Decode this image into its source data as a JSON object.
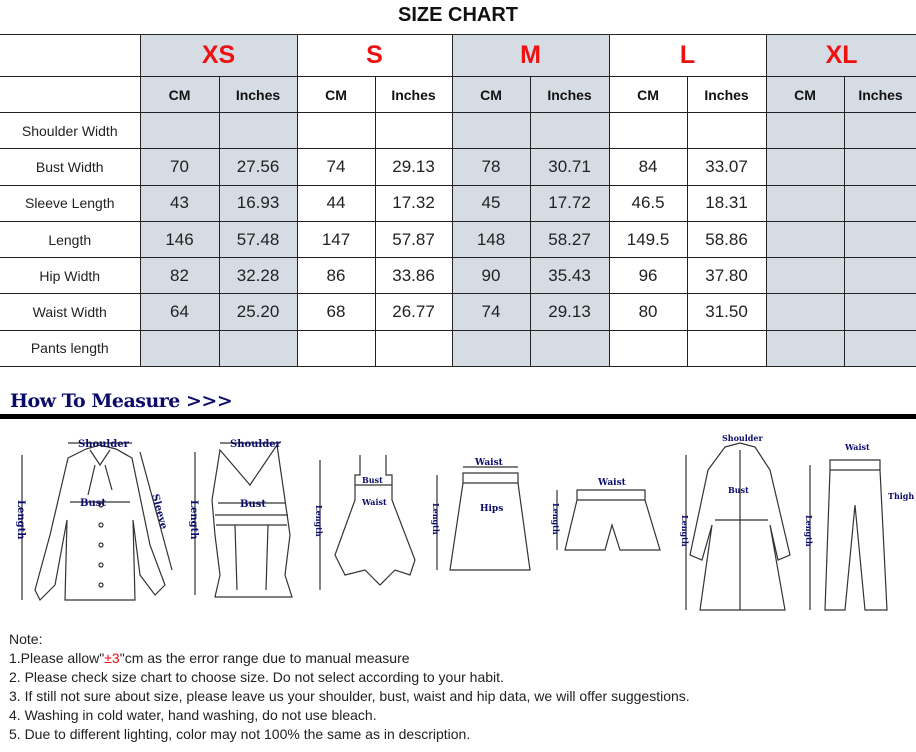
{
  "title": "SIZE CHART",
  "sizes": [
    "XS",
    "S",
    "M",
    "L",
    "XL"
  ],
  "units": {
    "cm": "CM",
    "inches": "Inches"
  },
  "rows": [
    {
      "label": "Shoulder Width",
      "values": [
        "",
        "",
        "",
        "",
        "",
        "",
        "",
        "",
        "",
        ""
      ]
    },
    {
      "label": "Bust Width",
      "values": [
        "70",
        "27.56",
        "74",
        "29.13",
        "78",
        "30.71",
        "84",
        "33.07",
        "",
        ""
      ]
    },
    {
      "label": "Sleeve Length",
      "values": [
        "43",
        "16.93",
        "44",
        "17.32",
        "45",
        "17.72",
        "46.5",
        "18.31",
        "",
        ""
      ]
    },
    {
      "label": "Length",
      "values": [
        "146",
        "57.48",
        "147",
        "57.87",
        "148",
        "58.27",
        "149.5",
        "58.86",
        "",
        ""
      ]
    },
    {
      "label": "Hip Width",
      "values": [
        "82",
        "32.28",
        "86",
        "33.86",
        "90",
        "35.43",
        "96",
        "37.80",
        "",
        ""
      ]
    },
    {
      "label": "Waist Width",
      "values": [
        "64",
        "25.20",
        "68",
        "26.77",
        "74",
        "29.13",
        "80",
        "31.50",
        "",
        ""
      ]
    },
    {
      "label": "Pants length",
      "values": [
        "",
        "",
        "",
        "",
        "",
        "",
        "",
        "",
        "",
        ""
      ]
    }
  ],
  "colors": {
    "size_label": "#ee1111",
    "shaded_column": "#d6dce4",
    "measure_heading": "#0b0b6b"
  },
  "how_to_measure": {
    "heading": "How To Measure >>>",
    "labels": {
      "shoulder": "Shoulder",
      "bust": "Bust",
      "sleeve": "Sleeve",
      "length": "Length",
      "waist": "Waist",
      "hips": "Hips",
      "thigh": "Thigh"
    }
  },
  "notes": {
    "heading": "Note:",
    "line1_pre": "1.Please allow\"",
    "line1_highlight": "±3",
    "line1_post": "\"cm as the error range due to manual measure",
    "line2": "2. Please check size chart to choose size. Do not select according to your habit.",
    "line3": "3. If still not sure about size, please leave us your shoulder, bust, waist and hip data, we will offer suggestions.",
    "line4": "4. Washing in cold water, hand washing, do not use bleach.",
    "line5": "5. Due to different lighting, color may not 100% the same as in description."
  }
}
